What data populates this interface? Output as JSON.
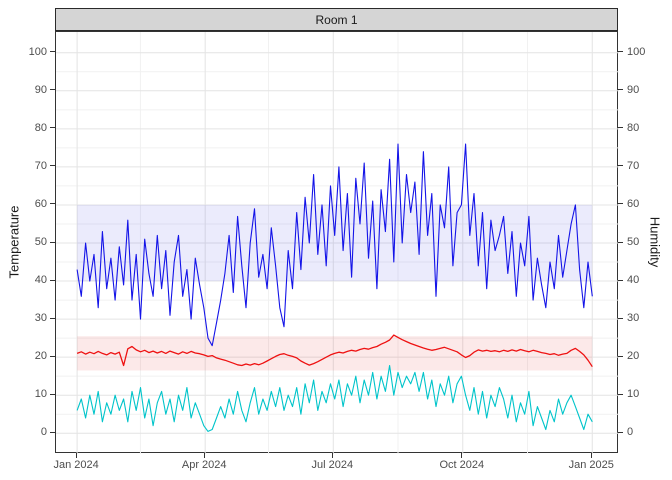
{
  "chart_data": {
    "type": "line",
    "facet_title": "Room 1",
    "x_axis": {
      "domain_days": [
        0,
        366
      ],
      "major_ticks": [
        {
          "day": 0,
          "label": "Jan 2024"
        },
        {
          "day": 91,
          "label": "Apr 2024"
        },
        {
          "day": 182,
          "label": "Jul 2024"
        },
        {
          "day": 274,
          "label": "Oct 2024"
        },
        {
          "day": 366,
          "label": "Jan 2025"
        }
      ],
      "minor_tick_days": [
        45,
        136,
        228,
        320
      ]
    },
    "y_axis_left": {
      "label": "Temperature",
      "min": 0,
      "max": 100,
      "major_step": 10,
      "minor_step": 5
    },
    "y_axis_right": {
      "label": "Humidity",
      "min": 0,
      "max": 100,
      "major_step": 10
    },
    "grid": {
      "major_color": "#e4e4e4",
      "minor_color": "#f1f1f1",
      "on": true
    },
    "legend": "none",
    "bands": [
      {
        "id": "humidity-target-band",
        "from": 40,
        "to": 60,
        "fill": "rgba(60,60,230,0.10)"
      },
      {
        "id": "temperature-target-band",
        "from": 16.5,
        "to": 25.5,
        "fill": "rgba(230,40,40,0.10)"
      }
    ],
    "series": [
      {
        "id": "series-blue-humidity",
        "axis": "right",
        "color": "#1414e8",
        "width": 1.1,
        "start_day": 0,
        "step_days": 3,
        "values": [
          43,
          36,
          50,
          40,
          47,
          33,
          53,
          38,
          46,
          35,
          49,
          39,
          56,
          35,
          47,
          30,
          51,
          42,
          36,
          52,
          38,
          48,
          31,
          45,
          52,
          36,
          43,
          30,
          46,
          39,
          33,
          25,
          23,
          29,
          35,
          42,
          52,
          37,
          57,
          44,
          33,
          50,
          59,
          41,
          47,
          38,
          54,
          44,
          33,
          28,
          48,
          38,
          58,
          43,
          62,
          50,
          68,
          47,
          60,
          44,
          65,
          52,
          70,
          48,
          63,
          41,
          67,
          55,
          71,
          46,
          61,
          38,
          64,
          53,
          72,
          45,
          76,
          50,
          68,
          58,
          66,
          47,
          74,
          52,
          63,
          36,
          60,
          54,
          70,
          44,
          58,
          60,
          76,
          52,
          63,
          44,
          58,
          38,
          56,
          48,
          52,
          57,
          42,
          53,
          36,
          50,
          44,
          57,
          35,
          46,
          39,
          33,
          45,
          38,
          52,
          41,
          48,
          55,
          60,
          43,
          33,
          45,
          36
        ]
      },
      {
        "id": "series-cyan-temperature",
        "axis": "left",
        "color": "#00c4ca",
        "width": 1.1,
        "start_day": 0,
        "step_days": 3,
        "values": [
          6,
          9,
          4,
          10,
          5,
          11,
          3,
          8,
          5,
          10,
          6,
          9,
          3,
          11,
          6,
          12,
          4,
          9,
          2,
          8,
          11,
          5,
          9,
          3,
          10,
          6,
          12,
          4,
          8,
          5,
          2,
          0.5,
          1,
          4,
          7,
          4,
          9,
          5,
          11,
          6,
          3,
          8,
          12,
          5,
          9,
          6,
          11,
          7,
          12,
          6,
          10,
          7,
          12,
          5,
          13,
          8,
          14,
          6,
          11,
          8,
          13,
          9,
          14,
          7,
          13,
          10,
          15,
          8,
          14,
          10,
          16,
          9,
          15,
          11,
          17.8,
          10,
          16,
          12,
          15,
          13,
          16,
          11,
          16,
          9,
          14,
          7,
          13,
          10,
          15,
          8,
          13,
          15,
          10,
          6,
          12,
          5,
          11,
          4,
          10,
          7,
          12,
          9,
          4,
          10,
          3,
          8,
          5,
          11,
          2,
          7,
          4,
          1,
          6,
          3,
          9,
          5,
          8,
          10,
          7,
          4,
          1,
          5,
          3
        ]
      },
      {
        "id": "series-red-temperature",
        "axis": "left",
        "color": "#ee1111",
        "width": 1.3,
        "start_day": 0,
        "step_days": 3,
        "values": [
          21.0,
          21.4,
          20.8,
          21.3,
          20.9,
          21.5,
          21.0,
          20.6,
          21.2,
          20.8,
          21.3,
          17.8,
          22.2,
          22.8,
          21.9,
          21.4,
          21.8,
          21.2,
          21.6,
          21.1,
          21.5,
          21.0,
          21.6,
          21.2,
          20.8,
          21.4,
          21.0,
          21.5,
          21.1,
          20.9,
          20.6,
          20.2,
          20.4,
          19.8,
          19.5,
          19.2,
          18.8,
          18.4,
          18.0,
          17.8,
          18.2,
          17.9,
          18.3,
          18.0,
          18.4,
          19.0,
          19.6,
          20.2,
          20.7,
          20.9,
          20.5,
          20.2,
          19.8,
          19.0,
          18.4,
          17.9,
          18.3,
          18.8,
          19.4,
          20.0,
          20.6,
          21.0,
          21.3,
          21.1,
          21.5,
          21.8,
          21.6,
          22.0,
          22.3,
          22.1,
          22.5,
          22.8,
          23.4,
          23.9,
          24.5,
          25.8,
          25.2,
          24.6,
          24.1,
          23.6,
          23.2,
          22.8,
          22.4,
          22.1,
          21.8,
          22.0,
          22.3,
          22.6,
          22.2,
          21.8,
          21.4,
          20.6,
          19.9,
          20.4,
          21.3,
          21.9,
          21.6,
          21.8,
          21.5,
          21.7,
          21.4,
          21.8,
          21.5,
          21.9,
          21.6,
          22.0,
          21.7,
          21.4,
          21.8,
          21.5,
          21.2,
          21.0,
          20.7,
          20.9,
          20.5,
          20.8,
          21.0,
          21.8,
          22.3,
          21.5,
          20.6,
          19.2,
          17.5
        ]
      }
    ]
  }
}
